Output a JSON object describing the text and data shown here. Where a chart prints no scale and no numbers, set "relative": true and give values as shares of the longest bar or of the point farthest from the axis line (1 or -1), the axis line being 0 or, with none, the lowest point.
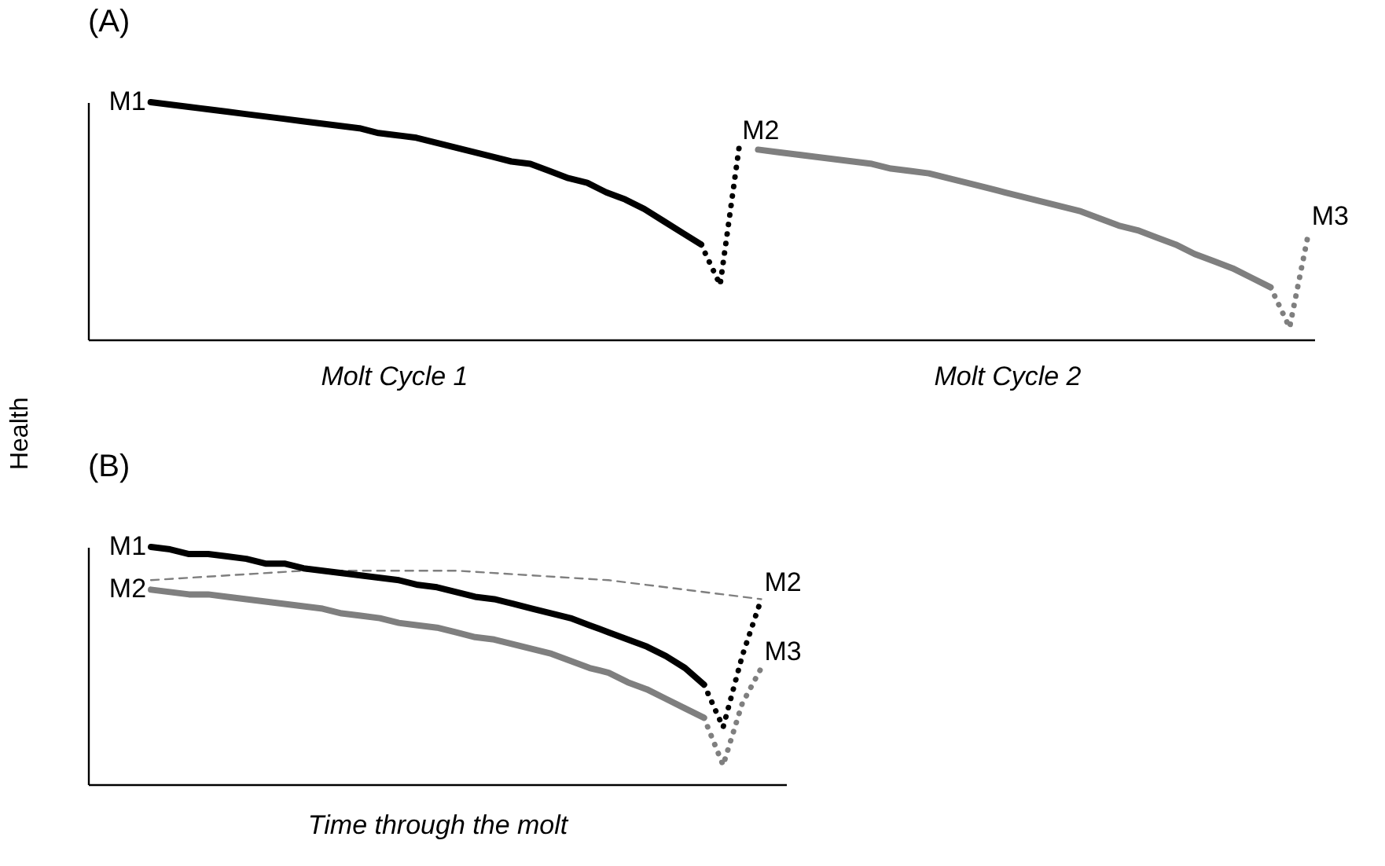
{
  "chart_data": [
    {
      "type": "line",
      "title": "(A)",
      "ylabel": "Health",
      "relative": true,
      "grid": false,
      "tick_labels": false,
      "annotations": [
        "Molt Cycle 1",
        "Molt Cycle 2"
      ],
      "categories": [
        null,
        null,
        null,
        null,
        null,
        null,
        null,
        null,
        null,
        null,
        null,
        null,
        null,
        null,
        null,
        null,
        null,
        null,
        null,
        null,
        null,
        null,
        null,
        null,
        null,
        null,
        null,
        null,
        null,
        null,
        null,
        null,
        null,
        null,
        null,
        null,
        null,
        null,
        null,
        null,
        null,
        null,
        null,
        null,
        null,
        null,
        null,
        null,
        null,
        null,
        null,
        null,
        null,
        null,
        null,
        null,
        null,
        null,
        null,
        null,
        null,
        null,
        null,
        null,
        null
      ],
      "series": [
        {
          "name": "M1",
          "color": "#000000",
          "line_style": "solid",
          "values": [
            null,
            null,
            null,
            1.0,
            0.99,
            0.98,
            0.97,
            0.96,
            0.95,
            0.94,
            0.93,
            0.92,
            0.91,
            0.9,
            0.89,
            0.87,
            0.86,
            0.85,
            0.83,
            0.81,
            0.79,
            0.77,
            0.75,
            0.74,
            0.71,
            0.68,
            0.66,
            0.62,
            0.59,
            0.55,
            0.5,
            0.45,
            0.4,
            null,
            null,
            null,
            null,
            null,
            null,
            null,
            null,
            null,
            null,
            null,
            null,
            null,
            null,
            null,
            null,
            null,
            null,
            null,
            null,
            null,
            null,
            null,
            null,
            null,
            null,
            null,
            null,
            null,
            null,
            null,
            null
          ]
        },
        {
          "name": "M2",
          "color": "#000000",
          "line_style": "dotted",
          "values": [
            null,
            null,
            null,
            null,
            null,
            null,
            null,
            null,
            null,
            null,
            null,
            null,
            null,
            null,
            null,
            null,
            null,
            null,
            null,
            null,
            null,
            null,
            null,
            null,
            null,
            null,
            null,
            null,
            null,
            null,
            null,
            null,
            0.4,
            0.23,
            0.81,
            null,
            null,
            null,
            null,
            null,
            null,
            null,
            null,
            null,
            null,
            null,
            null,
            null,
            null,
            null,
            null,
            null,
            null,
            null,
            null,
            null,
            null,
            null,
            null,
            null,
            null,
            null,
            null,
            null,
            null
          ]
        },
        {
          "color": "#7f7f7f",
          "line_style": "solid",
          "values": [
            null,
            null,
            null,
            null,
            null,
            null,
            null,
            null,
            null,
            null,
            null,
            null,
            null,
            null,
            null,
            null,
            null,
            null,
            null,
            null,
            null,
            null,
            null,
            null,
            null,
            null,
            null,
            null,
            null,
            null,
            null,
            null,
            null,
            null,
            null,
            0.8,
            0.79,
            0.78,
            0.77,
            0.76,
            0.75,
            0.74,
            0.72,
            0.71,
            0.7,
            0.68,
            0.66,
            0.64,
            0.62,
            0.6,
            0.58,
            0.56,
            0.54,
            0.51,
            0.48,
            0.46,
            0.43,
            0.4,
            0.36,
            0.33,
            0.3,
            0.26,
            0.22,
            null,
            null
          ]
        },
        {
          "name": "M3",
          "color": "#7f7f7f",
          "line_style": "dotted",
          "values": [
            null,
            null,
            null,
            null,
            null,
            null,
            null,
            null,
            null,
            null,
            null,
            null,
            null,
            null,
            null,
            null,
            null,
            null,
            null,
            null,
            null,
            null,
            null,
            null,
            null,
            null,
            null,
            null,
            null,
            null,
            null,
            null,
            null,
            null,
            null,
            null,
            null,
            null,
            null,
            null,
            null,
            null,
            null,
            null,
            null,
            null,
            null,
            null,
            null,
            null,
            null,
            null,
            null,
            null,
            null,
            null,
            null,
            null,
            null,
            null,
            null,
            null,
            0.22,
            0.05,
            0.45
          ]
        }
      ]
    },
    {
      "type": "line",
      "title": "(B)",
      "xlabel": "Time through the molt",
      "relative": true,
      "grid": false,
      "tick_labels": false,
      "categories": [
        null,
        null,
        null,
        null,
        null,
        null,
        null,
        null,
        null,
        null,
        null,
        null,
        null,
        null,
        null,
        null,
        null,
        null,
        null,
        null,
        null,
        null,
        null,
        null,
        null,
        null,
        null,
        null,
        null,
        null,
        null,
        null,
        null,
        null,
        null,
        null,
        null
      ],
      "series": [
        {
          "color": "#7f7f7f",
          "line_style": "dashed",
          "values": [
            null,
            null,
            null,
            0.86,
            null,
            null,
            null,
            null,
            null,
            null,
            null,
            0.9,
            null,
            null,
            null,
            null,
            null,
            null,
            null,
            0.9,
            null,
            null,
            null,
            null,
            null,
            null,
            null,
            0.86,
            null,
            null,
            null,
            null,
            null,
            null,
            null,
            0.78,
            null
          ]
        },
        {
          "name": "M1",
          "color": "#000000",
          "line_style": "solid",
          "values": [
            null,
            null,
            null,
            1.0,
            0.99,
            0.97,
            0.97,
            0.96,
            0.95,
            0.93,
            0.93,
            0.91,
            0.9,
            0.89,
            0.88,
            0.87,
            0.86,
            0.84,
            0.83,
            0.81,
            0.79,
            0.78,
            0.76,
            0.74,
            0.72,
            0.7,
            0.67,
            0.64,
            0.61,
            0.58,
            0.54,
            0.49,
            0.42,
            null,
            null,
            null,
            null
          ]
        },
        {
          "name": "M2",
          "color": "#7f7f7f",
          "line_style": "solid",
          "values": [
            null,
            null,
            null,
            0.82,
            0.81,
            0.8,
            0.8,
            0.79,
            0.78,
            0.77,
            0.76,
            0.75,
            0.74,
            0.72,
            0.71,
            0.7,
            0.68,
            0.67,
            0.66,
            0.64,
            0.62,
            0.61,
            0.59,
            0.57,
            0.55,
            0.52,
            0.49,
            0.47,
            0.43,
            0.4,
            0.36,
            0.32,
            0.28,
            null,
            null,
            null,
            null
          ]
        },
        {
          "name": "M2",
          "color": "#000000",
          "line_style": "dotted",
          "values": [
            null,
            null,
            null,
            null,
            null,
            null,
            null,
            null,
            null,
            null,
            null,
            null,
            null,
            null,
            null,
            null,
            null,
            null,
            null,
            null,
            null,
            null,
            null,
            null,
            null,
            null,
            null,
            null,
            null,
            null,
            null,
            null,
            0.42,
            0.24,
            0.54,
            0.78,
            null
          ]
        },
        {
          "name": "M3",
          "color": "#7f7f7f",
          "line_style": "dotted",
          "values": [
            null,
            null,
            null,
            null,
            null,
            null,
            null,
            null,
            null,
            null,
            null,
            null,
            null,
            null,
            null,
            null,
            null,
            null,
            null,
            null,
            null,
            null,
            null,
            null,
            null,
            null,
            null,
            null,
            null,
            null,
            null,
            null,
            0.28,
            0.08,
            0.34,
            0.49,
            null
          ]
        }
      ]
    }
  ]
}
